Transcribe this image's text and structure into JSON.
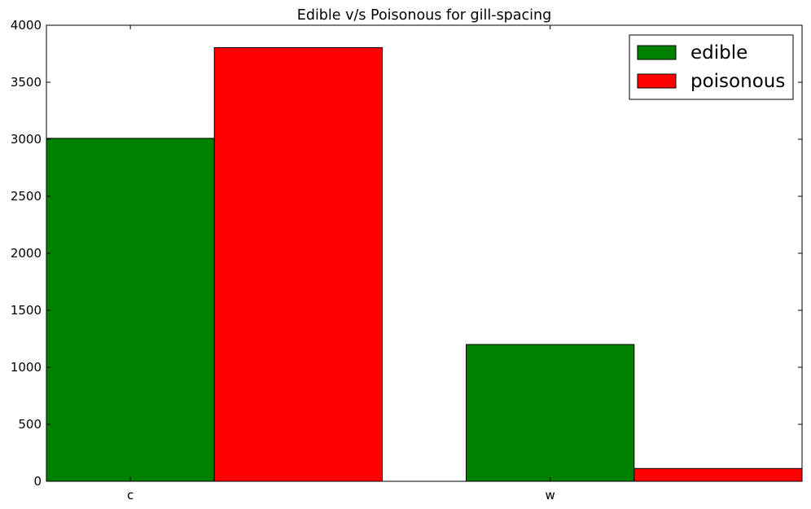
{
  "chart_data": {
    "type": "bar",
    "title": "Edible v/s Poisonous for gill-spacing",
    "xlabel": "",
    "ylabel": "",
    "categories": [
      "c",
      "w"
    ],
    "series": [
      {
        "name": "edible",
        "color": "#008000",
        "values": [
          3008,
          1200
        ]
      },
      {
        "name": "poisonous",
        "color": "#ff0000",
        "values": [
          3804,
          112
        ]
      }
    ],
    "ylim": [
      0,
      4000
    ],
    "yticks": [
      0,
      500,
      1000,
      1500,
      2000,
      2500,
      3000,
      3500,
      4000
    ],
    "grid": false,
    "legend_position": "top-right"
  }
}
